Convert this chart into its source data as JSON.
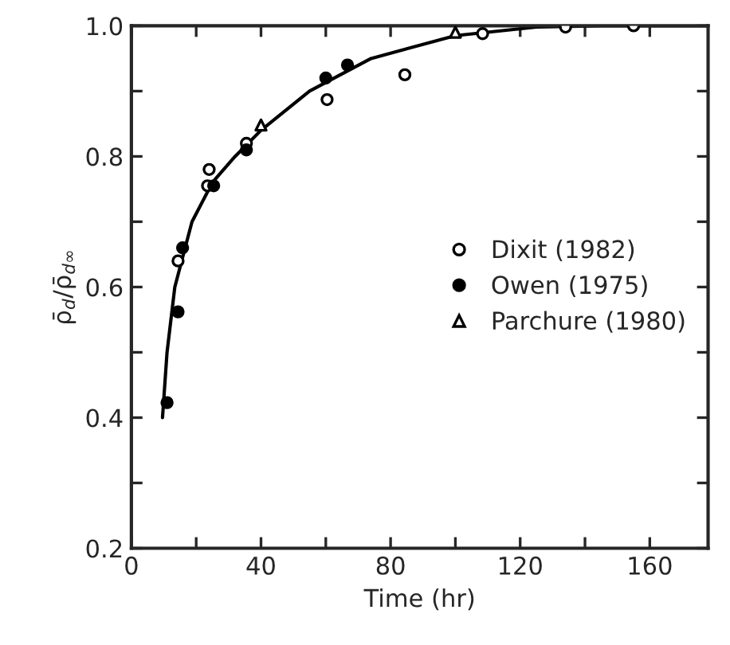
{
  "chart_data": {
    "type": "scatter",
    "xlabel": "Time (hr)",
    "ylabel": "ρ̄$_{d}$/ρ̄$_{d∞}$",
    "xlim": [
      0,
      178
    ],
    "ylim": [
      0.2,
      1.0
    ],
    "xticks": [
      0,
      {
        "value": 20,
        "label": null
      },
      40,
      {
        "value": 60,
        "label": null
      },
      80,
      {
        "value": 100,
        "label": null
      },
      120,
      {
        "value": 140,
        "label": null
      },
      160
    ],
    "yticks": [
      0.2,
      {
        "value": 0.3,
        "label": null
      },
      0.4,
      {
        "value": 0.5,
        "label": null
      },
      0.6,
      {
        "value": 0.7,
        "label": null
      },
      0.8,
      {
        "value": 0.9,
        "label": null
      },
      {
        "value": 1.0,
        "label": "1.0"
      }
    ],
    "grid": false,
    "legend": "right",
    "series": [
      {
        "name": "Dixit (1982)",
        "color": "#000000",
        "marker": "circle",
        "x": [
          14.4,
          23.5,
          24,
          35.5,
          60.4,
          84.4,
          108.4,
          134,
          155
        ],
        "values": [
          0.64,
          0.755,
          0.78,
          0.82,
          0.887,
          0.925,
          0.988,
          0.998,
          1.0
        ]
      },
      {
        "name": "Owen (1975)",
        "color": "#000000",
        "marker": "circle",
        "x": [
          11,
          14.4,
          15.8,
          25.4,
          35.5,
          60,
          66.7
        ],
        "values": [
          0.423,
          0.562,
          0.66,
          0.755,
          0.81,
          0.92,
          0.94
        ]
      },
      {
        "name": "Parchure (1980)",
        "color": "#000000",
        "marker": "triangle",
        "x": [
          40,
          100
        ],
        "values": [
          0.848,
          0.99
        ]
      },
      {
        "type": "line",
        "color": "#000000",
        "marker": "none",
        "line_style": "solid",
        "x": [
          9.6,
          11,
          13.4,
          18.7,
          25,
          32,
          40,
          55,
          74,
          100,
          125,
          145,
          178
        ],
        "values": [
          0.4,
          0.5,
          0.6,
          0.7,
          0.76,
          0.8,
          0.84,
          0.9,
          0.95,
          0.985,
          0.998,
          1.0,
          1.0
        ]
      }
    ]
  }
}
